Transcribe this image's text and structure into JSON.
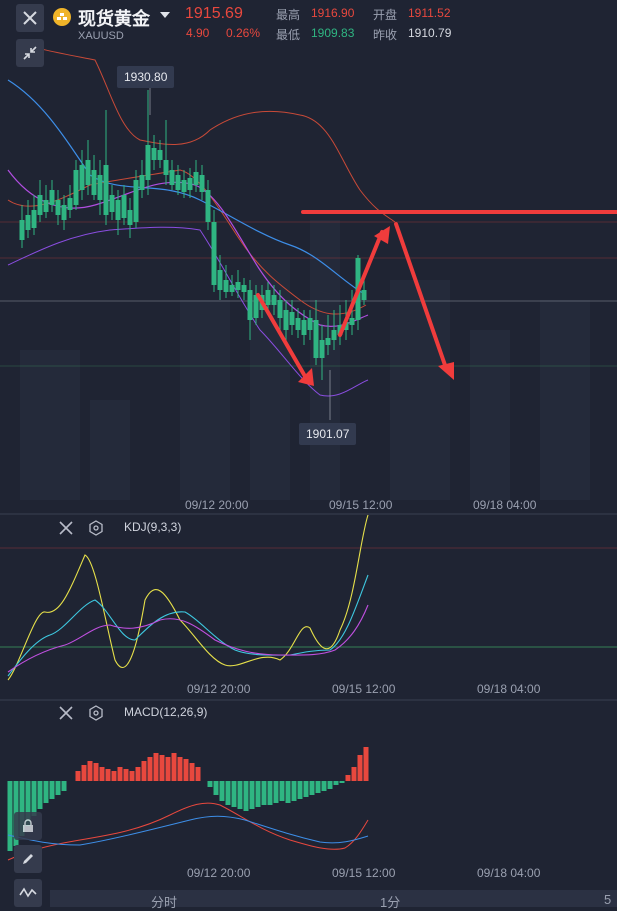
{
  "header": {
    "symbol_name": "现货黄金",
    "symbol_code": "XAUUSD",
    "price": "1915.69",
    "change": "4.90",
    "change_pct": "0.26%",
    "high_label": "最高",
    "high_value": "1916.90",
    "low_label": "最低",
    "low_value": "1909.83",
    "open_label": "开盘",
    "open_value": "1911.52",
    "prev_close_label": "昨收",
    "prev_close_value": "1910.79"
  },
  "main_chart": {
    "max_label": "1930.80",
    "min_label": "1901.07",
    "x_ticks": [
      "09/12 20:00",
      "09/15 12:00",
      "09/18 04:00"
    ]
  },
  "kdj_panel": {
    "title": "KDJ(9,3,3)",
    "x_ticks": [
      "09/12 20:00",
      "09/15 12:00",
      "09/18 04:00"
    ]
  },
  "macd_panel": {
    "title": "MACD(12,26,9)",
    "x_ticks": [
      "09/12 20:00",
      "09/15 12:00",
      "09/18 04:00"
    ]
  },
  "tabs": [
    "分时",
    "1分",
    "5"
  ],
  "colors": {
    "up": "#e8483e",
    "down": "#2fb582",
    "annotation": "#f03c3c",
    "ma_blue": "#3d8ee8",
    "ma_purple": "#b04de0",
    "boll": "#c84a38",
    "kdj_k": "#e6e04a",
    "kdj_d": "#3ec8e0"
  },
  "icons": {
    "close": "close-icon",
    "dropdown": "caret-down-icon",
    "collapse": "collapse-arrows-icon",
    "settings": "hexagon-settings-icon",
    "draw": "pencil-icon",
    "indicator": "wave-icon"
  }
}
